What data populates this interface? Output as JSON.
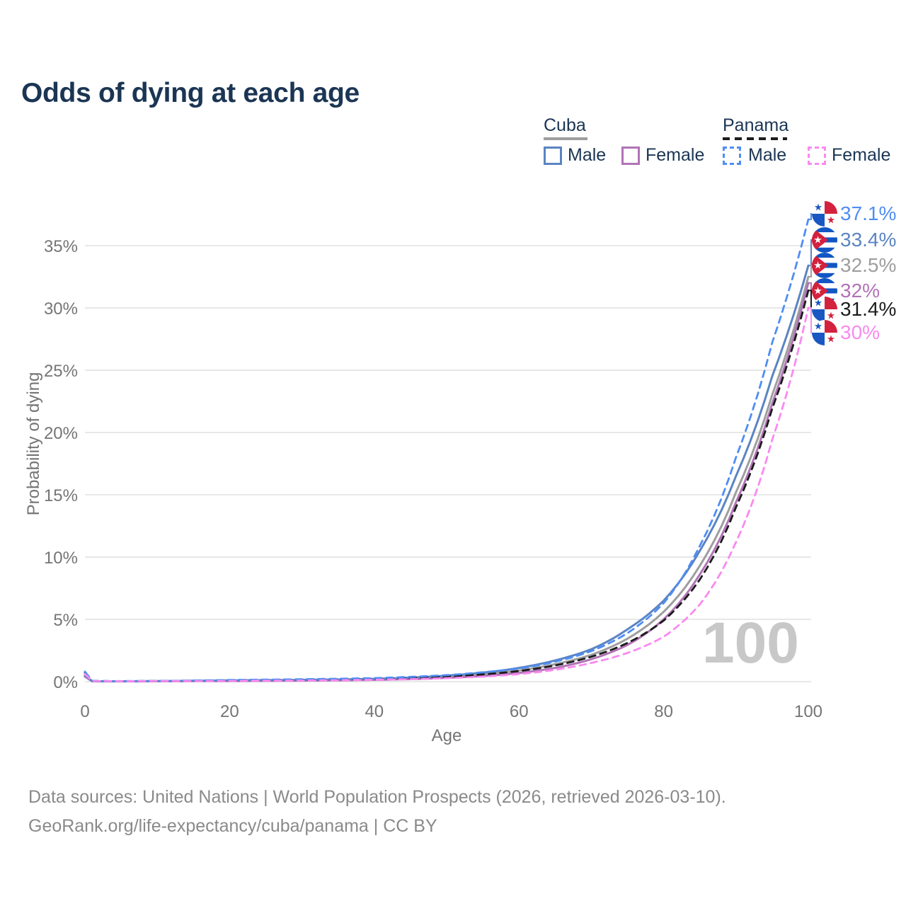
{
  "header": {
    "title": "Odds of dying at each age"
  },
  "legend": {
    "groups": [
      {
        "label": "Cuba",
        "line_style": "solid",
        "line_color": "#9e9e9e",
        "items": [
          {
            "label": "Male",
            "color": "#5b84c3",
            "dashed": false
          },
          {
            "label": "Female",
            "color": "#b173b6",
            "dashed": false
          }
        ]
      },
      {
        "label": "Panama",
        "line_style": "dashed",
        "line_color": "#1c1c1c",
        "items": [
          {
            "label": "Male",
            "color": "#4f8df4",
            "dashed": true
          },
          {
            "label": "Female",
            "color": "#f98af0",
            "dashed": true
          }
        ]
      }
    ]
  },
  "chart_data": {
    "type": "line",
    "title": "Odds of dying at each age",
    "xlabel": "Age",
    "ylabel": "Probability of dying",
    "xlim": [
      0,
      100
    ],
    "ylim": [
      0,
      35
    ],
    "x_ticks": [
      0,
      20,
      40,
      60,
      80,
      100
    ],
    "y_ticks": [
      "0%",
      "5%",
      "10%",
      "15%",
      "20%",
      "25%",
      "30%",
      "35%"
    ],
    "grid": "horizontal",
    "ages": [
      0,
      1,
      2,
      5,
      10,
      15,
      20,
      25,
      30,
      35,
      40,
      45,
      50,
      55,
      60,
      65,
      70,
      75,
      80,
      85,
      90,
      95,
      100
    ],
    "series": [
      {
        "name": "Cuba Total",
        "country": "Cuba",
        "sex": "Total",
        "flag": "cuba",
        "color": "#9e9e9e",
        "dashed": false,
        "end_label": "32.5%",
        "values": [
          0.45,
          0.035,
          0.027,
          0.025,
          0.035,
          0.05,
          0.08,
          0.09,
          0.11,
          0.14,
          0.18,
          0.26,
          0.38,
          0.58,
          0.9,
          1.4,
          2.15,
          3.45,
          5.6,
          9.3,
          15.2,
          23.0,
          32.5
        ]
      },
      {
        "name": "Cuba Female",
        "country": "Cuba",
        "sex": "Female",
        "flag": "cuba",
        "color": "#b173b6",
        "dashed": false,
        "end_label": "32%",
        "values": [
          0.4,
          0.03,
          0.022,
          0.02,
          0.03,
          0.04,
          0.05,
          0.06,
          0.08,
          0.1,
          0.14,
          0.2,
          0.3,
          0.45,
          0.7,
          1.1,
          1.8,
          2.95,
          5.0,
          8.6,
          14.4,
          22.3,
          32.0
        ]
      },
      {
        "name": "Cuba Male",
        "country": "Cuba",
        "sex": "Male",
        "flag": "cuba",
        "color": "#5b84c3",
        "dashed": false,
        "end_label": "33.4%",
        "values": [
          0.5,
          0.04,
          0.03,
          0.03,
          0.04,
          0.07,
          0.1,
          0.12,
          0.14,
          0.17,
          0.22,
          0.32,
          0.48,
          0.72,
          1.1,
          1.7,
          2.6,
          4.2,
          6.5,
          10.5,
          16.5,
          24.5,
          33.4
        ]
      },
      {
        "name": "Panama Total",
        "country": "Panama",
        "sex": "Total",
        "flag": "panama",
        "color": "#1c1c1c",
        "dashed": true,
        "end_label": "31.4%",
        "values": [
          0.7,
          0.05,
          0.04,
          0.035,
          0.04,
          0.07,
          0.1,
          0.12,
          0.14,
          0.17,
          0.21,
          0.29,
          0.4,
          0.58,
          0.85,
          1.3,
          2.0,
          3.1,
          4.9,
          8.2,
          14.0,
          21.9,
          31.4
        ]
      },
      {
        "name": "Panama Male",
        "country": "Panama",
        "sex": "Male",
        "flag": "panama",
        "color": "#4f8df4",
        "dashed": true,
        "end_label": "37.1%",
        "values": [
          0.8,
          0.06,
          0.045,
          0.04,
          0.05,
          0.09,
          0.13,
          0.16,
          0.19,
          0.23,
          0.28,
          0.38,
          0.52,
          0.75,
          1.05,
          1.6,
          2.45,
          3.9,
          6.3,
          10.9,
          18.0,
          27.2,
          37.1
        ]
      },
      {
        "name": "Panama Female",
        "country": "Panama",
        "sex": "Female",
        "flag": "panama",
        "color": "#f98af0",
        "dashed": true,
        "end_label": "30%",
        "values": [
          0.6,
          0.045,
          0.035,
          0.03,
          0.035,
          0.05,
          0.06,
          0.08,
          0.09,
          0.11,
          0.15,
          0.2,
          0.28,
          0.4,
          0.6,
          0.95,
          1.5,
          2.3,
          3.6,
          6.2,
          11.2,
          19.4,
          30.0
        ]
      }
    ],
    "legend_position": "top-right",
    "annotations": [
      "100"
    ]
  },
  "watermark": "100",
  "footer": {
    "line1": "Data sources: United Nations | World Population Prospects (2026, retrieved 2026-03-10).",
    "line2": "GeoRank.org/life-expectancy/cuba/panama | CC BY"
  },
  "colors": {
    "title_text": "#1b3554",
    "axis_text": "#757575",
    "gridline": "#e8e8e8",
    "watermark": "#c8c8c8",
    "footer_text": "#8a8a8a"
  }
}
